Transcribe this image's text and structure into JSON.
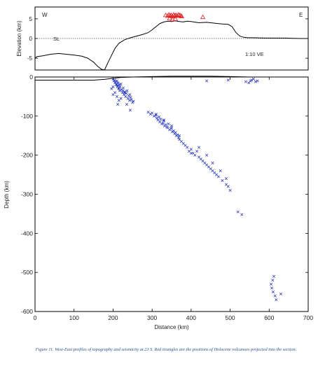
{
  "caption": "Figure 11. West-East profiles of topography and seismicity at 23 S. Red triangles are the positions of Holocene volcanoes projected into the section.",
  "colors": {
    "earthquake": "#1f2fbf",
    "volcano": "#e02020",
    "line": "#000000",
    "grid": "#bbbbbb"
  },
  "chart_data": [
    {
      "type": "line",
      "panel": "topography",
      "ylabel": "Elevation (km)",
      "xlabel": "",
      "xlim": [
        0,
        700
      ],
      "ylim": [
        -8,
        8
      ],
      "yticks": [
        -5,
        0,
        5
      ],
      "annotations": {
        "west": "W",
        "east": "E",
        "sea_level": "SL",
        "exaggeration": "1:10 VE"
      },
      "series": [
        {
          "x": [
            0,
            5,
            20,
            40,
            60,
            80,
            100,
            120,
            135,
            150,
            160,
            170,
            178,
            185,
            195,
            205,
            215,
            230,
            245,
            260,
            275,
            290,
            300,
            310,
            320,
            330,
            340,
            350,
            360,
            370,
            380,
            390,
            400,
            420,
            440,
            460,
            480,
            495,
            505,
            515,
            525,
            535,
            545,
            560,
            580,
            600,
            620,
            640,
            660,
            680,
            700
          ],
          "values": [
            -5.0,
            -4.6,
            -4.4,
            -4.0,
            -3.8,
            -4.0,
            -4.2,
            -4.5,
            -5.0,
            -6.0,
            -7.0,
            -7.8,
            -8.0,
            -6.5,
            -4.5,
            -2.5,
            -1.2,
            -0.3,
            0.2,
            0.6,
            1.0,
            1.5,
            2.2,
            3.0,
            3.8,
            4.2,
            4.4,
            4.3,
            4.5,
            4.3,
            4.2,
            4.4,
            4.3,
            4.0,
            4.1,
            3.9,
            3.7,
            3.6,
            3.0,
            1.5,
            0.6,
            0.3,
            0.2,
            0.2,
            0.15,
            0.1,
            0.1,
            0.1,
            0.05,
            0.0,
            0.0
          ]
        }
      ],
      "volcanoes": {
        "x": [
          335,
          340,
          343,
          346,
          349,
          352,
          355,
          358,
          361,
          364,
          367,
          370,
          373,
          376,
          345,
          352,
          360,
          430
        ],
        "y": [
          6.0,
          5.8,
          6.1,
          5.9,
          6.0,
          5.7,
          6.1,
          5.9,
          6.0,
          5.8,
          6.1,
          6.0,
          5.9,
          5.7,
          5.2,
          4.9,
          5.0,
          5.5
        ]
      }
    },
    {
      "type": "scatter",
      "panel": "seismicity",
      "xlabel": "Distance (km)",
      "ylabel": "Depth (km)",
      "xlim": [
        0,
        700
      ],
      "ylim": [
        -600,
        0
      ],
      "xticks": [
        0,
        100,
        200,
        300,
        400,
        500,
        600,
        700
      ],
      "yticks": [
        0,
        -100,
        -200,
        -300,
        -400,
        -500,
        -600
      ],
      "surface": {
        "x": [
          0,
          100,
          150,
          180,
          200,
          220,
          250,
          300,
          350,
          400,
          450,
          500,
          550,
          600,
          650,
          700
        ],
        "values": [
          -8,
          -8,
          -8,
          -6,
          -3,
          -1,
          0,
          1,
          2,
          2,
          2,
          1,
          0,
          0,
          0,
          0
        ]
      },
      "series": [
        {
          "marker": "x",
          "x": [
            200,
            202,
            204,
            205,
            207,
            208,
            209,
            210,
            211,
            212,
            213,
            214,
            215,
            216,
            217,
            218,
            220,
            222,
            224,
            226,
            228,
            230,
            232,
            234,
            236,
            238,
            240,
            242,
            243,
            245,
            247,
            250,
            252,
            205,
            210,
            215,
            225,
            235,
            200,
            230,
            200,
            196,
            212,
            220,
            244,
            290,
            296,
            300,
            305,
            310,
            312,
            315,
            318,
            320,
            322,
            325,
            328,
            330,
            332,
            335,
            338,
            340,
            342,
            345,
            348,
            350,
            352,
            355,
            358,
            360,
            362,
            365,
            368,
            370,
            375,
            380,
            385,
            390,
            395,
            400,
            405,
            410,
            415,
            420,
            425,
            430,
            435,
            440,
            445,
            450,
            455,
            460,
            465,
            470,
            480,
            490,
            495,
            500,
            310,
            330,
            350,
            370,
            400,
            420,
            440,
            455,
            475,
            490,
            520,
            530,
            605,
            607,
            609,
            610,
            612,
            615,
            618,
            630,
            440,
            495,
            540,
            548,
            552,
            560,
            565,
            570,
            555
          ],
          "y": [
            -5,
            -10,
            -8,
            -15,
            -12,
            -20,
            -18,
            -10,
            -25,
            -22,
            -15,
            -28,
            -30,
            -20,
            -35,
            -25,
            -18,
            -32,
            -40,
            -28,
            -45,
            -38,
            -50,
            -42,
            -35,
            -55,
            -48,
            -60,
            -45,
            -52,
            -58,
            -65,
            -62,
            -40,
            -50,
            -60,
            -35,
            -70,
            -25,
            -40,
            -45,
            -30,
            -70,
            -55,
            -85,
            -90,
            -95,
            -92,
            -100,
            -98,
            -105,
            -110,
            -102,
            -115,
            -108,
            -120,
            -118,
            -112,
            -125,
            -122,
            -128,
            -130,
            -120,
            -135,
            -132,
            -125,
            -140,
            -138,
            -145,
            -142,
            -150,
            -148,
            -155,
            -160,
            -165,
            -170,
            -175,
            -180,
            -190,
            -185,
            -195,
            -200,
            -190,
            -205,
            -210,
            -215,
            -220,
            -225,
            -230,
            -235,
            -240,
            -245,
            -250,
            -255,
            -265,
            -275,
            -280,
            -290,
            -95,
            -110,
            -130,
            -150,
            -195,
            -180,
            -200,
            -220,
            -240,
            -260,
            -345,
            -352,
            -530,
            -540,
            -520,
            -550,
            -510,
            -560,
            -570,
            -555,
            -10,
            -8,
            -12,
            -15,
            -10,
            -5,
            -12,
            -10,
            -8
          ]
        }
      ]
    }
  ]
}
